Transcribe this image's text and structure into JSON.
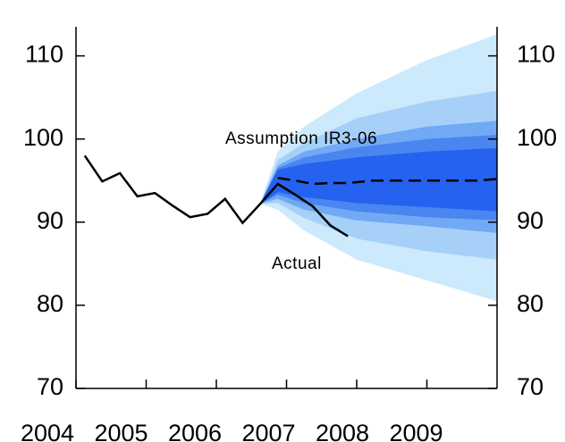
{
  "chart_data": {
    "type": "fan",
    "xlim": [
      2004,
      2010
    ],
    "xticks": [
      2004,
      2005,
      2006,
      2007,
      2008,
      2009
    ],
    "ylim": [
      70,
      113.5
    ],
    "yticks": [
      70,
      80,
      90,
      100,
      110
    ],
    "y2lim": [
      70,
      113.5
    ],
    "y2ticks": [
      70,
      80,
      90,
      100,
      110
    ],
    "fan_x": [
      2006.625,
      2006.875,
      2007.25,
      2008,
      2009,
      2010
    ],
    "fan": [
      {
        "color": "#cde9fc",
        "lower": [
          92.2,
          91.5,
          89,
          85.5,
          83,
          80.5
        ],
        "upper": [
          92.2,
          98.5,
          101.5,
          105.5,
          109.5,
          112.6
        ]
      },
      {
        "color": "#a6d0f8",
        "lower": [
          92.2,
          92.3,
          90.5,
          88,
          86.5,
          85.5
        ],
        "upper": [
          92.2,
          97.5,
          99.5,
          102.5,
          104.5,
          105.8
        ]
      },
      {
        "color": "#72a9f5",
        "lower": [
          92.2,
          92.8,
          91.5,
          90.2,
          89.5,
          88.7
        ],
        "upper": [
          92.2,
          96.8,
          98.5,
          100,
          101.5,
          102.2
        ]
      },
      {
        "color": "#4a86f0",
        "lower": [
          92.2,
          93.3,
          92.3,
          91.3,
          90.6,
          90.2
        ],
        "upper": [
          92.2,
          96.5,
          97.8,
          99,
          100,
          100.5
        ]
      },
      {
        "color": "#2462ef",
        "lower": [
          92.2,
          93.6,
          93,
          92.3,
          91.8,
          91.3
        ],
        "upper": [
          92.2,
          96.3,
          97,
          97.8,
          98.5,
          98.9
        ]
      }
    ],
    "series": [
      {
        "name": "Actual",
        "color": "#000000",
        "dashed": false,
        "x": [
          2004.125,
          2004.375,
          2004.625,
          2004.875,
          2005.125,
          2005.375,
          2005.625,
          2005.875,
          2006.125,
          2006.375,
          2006.625,
          2006.875,
          2007.125,
          2007.375,
          2007.625,
          2007.875
        ],
        "values": [
          98,
          94.9,
          95.9,
          93.1,
          93.5,
          92,
          90.6,
          91,
          92.8,
          89.9,
          92.2,
          94.6,
          93.3,
          91.9,
          89.6,
          88.3
        ]
      },
      {
        "name": "Assumption IR3-06",
        "color": "#000000",
        "dashed": true,
        "x": [
          2006.875,
          2007.125,
          2007.375,
          2007.625,
          2007.875,
          2008.25,
          2008.75,
          2009.25,
          2009.75,
          2010
        ],
        "values": [
          95.3,
          95,
          94.6,
          94.7,
          94.7,
          95,
          95,
          95,
          95,
          95.2
        ]
      }
    ]
  }
}
